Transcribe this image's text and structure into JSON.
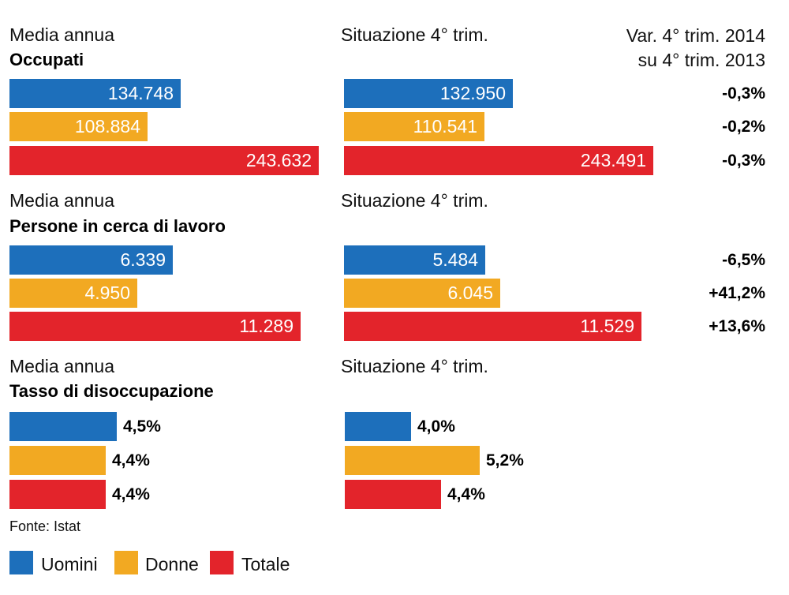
{
  "colors": {
    "uomini": "#1d6fbb",
    "donne": "#f2a922",
    "totale": "#e3242b"
  },
  "header_right": {
    "line1": "Var. 4° trim. 2014",
    "line2": "su 4° trim. 2013"
  },
  "sections": [
    {
      "left_label": "Media annua",
      "title": "Occupati",
      "right_label": "Situazione 4° trim.",
      "annual": {
        "labels": [
          "134.748",
          "108.884",
          "243.632"
        ]
      },
      "q4": {
        "labels": [
          "132.950",
          "110.541",
          "243.491"
        ]
      },
      "changes": [
        "-0,3%",
        "-0,2%",
        "-0,3%"
      ]
    },
    {
      "left_label": "Media annua",
      "title": "Persone in cerca di lavoro",
      "right_label": "Situazione 4° trim.",
      "annual": {
        "labels": [
          "6.339",
          "4.950",
          "11.289"
        ]
      },
      "q4": {
        "labels": [
          "5.484",
          "6.045",
          "11.529"
        ]
      },
      "changes": [
        "-6,5%",
        "+41,2%",
        "+13,6%"
      ]
    },
    {
      "left_label": "Media annua",
      "title": "Tasso di disoccupazione",
      "right_label": "Situazione 4° trim.",
      "annual": {
        "labels": [
          "4,5%",
          "4,4%",
          "4,4%"
        ]
      },
      "q4": {
        "labels": [
          "4,0%",
          "5,2%",
          "4,4%"
        ]
      }
    }
  ],
  "source": "Fonte: Istat",
  "legend": [
    "Uomini",
    "Donne",
    "Totale"
  ],
  "chart_data": [
    {
      "type": "bar",
      "title": "Occupati",
      "categories": [
        "Uomini",
        "Donne",
        "Totale"
      ],
      "series": [
        {
          "name": "Media annua",
          "values": [
            134748,
            108884,
            243632
          ]
        },
        {
          "name": "Situazione 4° trim.",
          "values": [
            132950,
            110541,
            243491
          ]
        }
      ],
      "variation_label": "Var. 4° trim. 2014 su 4° trim. 2013",
      "variation": [
        "-0,3%",
        "-0,2%",
        "-0,3%"
      ]
    },
    {
      "type": "bar",
      "title": "Persone in cerca di lavoro",
      "categories": [
        "Uomini",
        "Donne",
        "Totale"
      ],
      "series": [
        {
          "name": "Media annua",
          "values": [
            6339,
            4950,
            11289
          ]
        },
        {
          "name": "Situazione 4° trim.",
          "values": [
            5484,
            6045,
            11529
          ]
        }
      ],
      "variation_label": "Var. 4° trim. 2014 su 4° trim. 2013",
      "variation": [
        "-6,5%",
        "+41,2%",
        "+13,6%"
      ]
    },
    {
      "type": "bar",
      "title": "Tasso di disoccupazione",
      "categories": [
        "Uomini",
        "Donne",
        "Totale"
      ],
      "series": [
        {
          "name": "Media annua",
          "values": [
            4.5,
            4.4,
            4.4
          ]
        },
        {
          "name": "Situazione 4° trim.",
          "values": [
            4.0,
            5.2,
            4.4
          ]
        }
      ]
    }
  ]
}
